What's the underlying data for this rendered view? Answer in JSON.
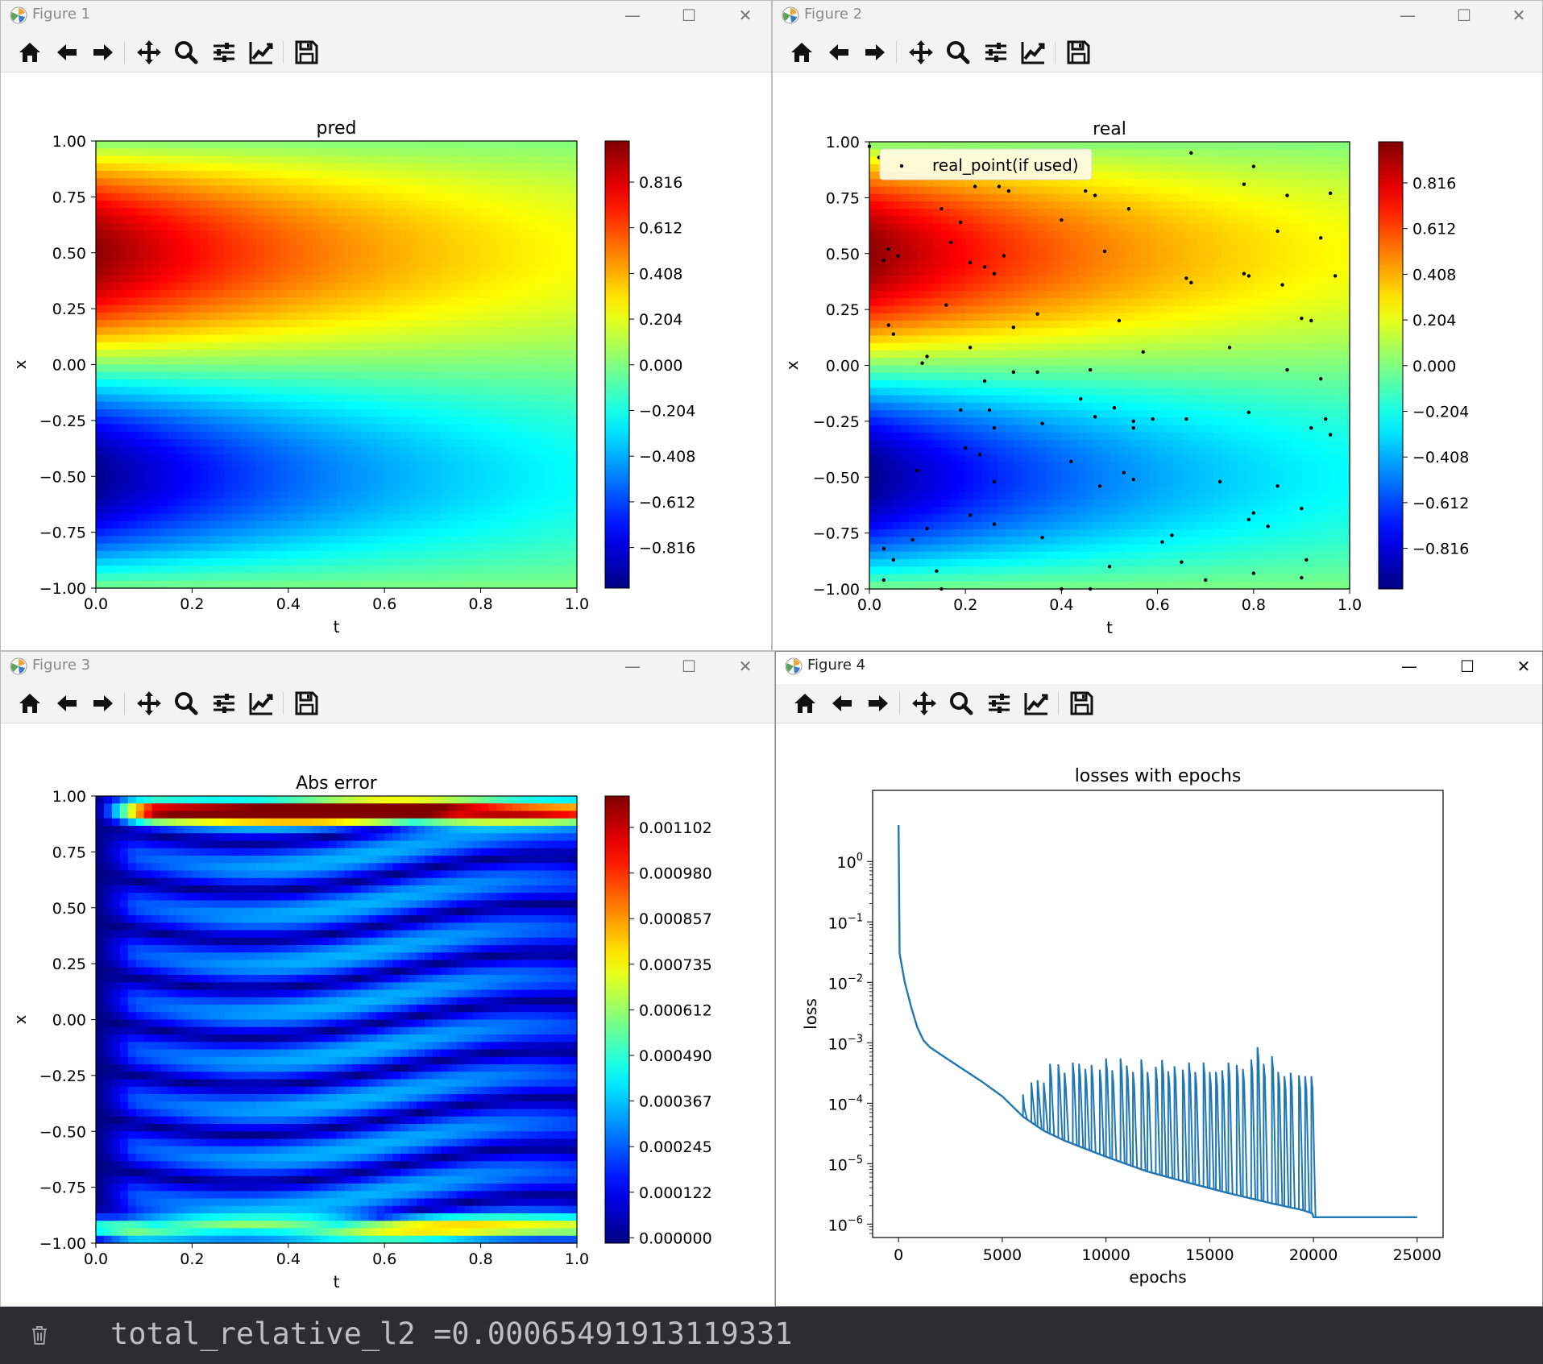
{
  "windows": [
    {
      "title": "Figure 1"
    },
    {
      "title": "Figure 2"
    },
    {
      "title": "Figure 3"
    },
    {
      "title": "Figure 4"
    }
  ],
  "window_controls": {
    "minimize": "—",
    "maximize": "☐",
    "close": "✕"
  },
  "toolbar_icons": [
    "home-icon",
    "back-arrow-icon",
    "forward-arrow-icon",
    "pan-icon",
    "zoom-icon",
    "configure-subplots-icon",
    "edit-axis-icon",
    "save-icon"
  ],
  "console": {
    "output": "total_relative_l2 =0.00065491913119331"
  },
  "chart_data": [
    {
      "type": "heatmap",
      "title": "pred",
      "xlabel": "t",
      "ylabel": "x",
      "xlim": [
        0.0,
        1.0
      ],
      "ylim": [
        -1.0,
        1.0
      ],
      "x_ticks": [
        "0.0",
        "0.2",
        "0.4",
        "0.6",
        "0.8",
        "1.0"
      ],
      "y_ticks": [
        "1.00",
        "0.75",
        "0.50",
        "0.25",
        "0.00",
        "−0.25",
        "−0.50",
        "−0.75",
        "−1.00"
      ],
      "colormap": "jet",
      "colorbar_ticks": [
        "0.816",
        "0.612",
        "0.408",
        "0.204",
        "0.000",
        "−0.204",
        "−0.408",
        "−0.612",
        "−0.816"
      ]
    },
    {
      "type": "heatmap",
      "title": "real",
      "xlabel": "t",
      "ylabel": "x",
      "xlim": [
        0.0,
        1.0
      ],
      "ylim": [
        -1.0,
        1.0
      ],
      "x_ticks": [
        "0.0",
        "0.2",
        "0.4",
        "0.6",
        "0.8",
        "1.0"
      ],
      "y_ticks": [
        "1.00",
        "0.75",
        "0.50",
        "0.25",
        "0.00",
        "−0.25",
        "−0.50",
        "−0.75",
        "−1.00"
      ],
      "colormap": "jet",
      "colorbar_ticks": [
        "0.816",
        "0.612",
        "0.408",
        "0.204",
        "0.000",
        "−0.204",
        "−0.408",
        "−0.612",
        "−0.816"
      ],
      "legend": "real_point(if used)",
      "legend_position": "upper-left",
      "scatter_points": [
        [
          0.04,
          0.52
        ],
        [
          0.06,
          0.49
        ],
        [
          0.03,
          0.47
        ],
        [
          0.04,
          0.18
        ],
        [
          0.05,
          0.14
        ],
        [
          0.11,
          0.01
        ],
        [
          0.12,
          0.04
        ],
        [
          0.02,
          0.93
        ],
        [
          0.17,
          0.55
        ],
        [
          0.15,
          0.7
        ],
        [
          0.19,
          0.64
        ],
        [
          0.16,
          0.27
        ],
        [
          0.21,
          0.46
        ],
        [
          0.22,
          0.8
        ],
        [
          0.24,
          0.44
        ],
        [
          0.26,
          0.41
        ],
        [
          0.27,
          0.8
        ],
        [
          0.29,
          0.78
        ],
        [
          0.28,
          0.49
        ],
        [
          0.21,
          0.08
        ],
        [
          0.24,
          -0.07
        ],
        [
          0.3,
          0.17
        ],
        [
          0.3,
          -0.03
        ],
        [
          0.35,
          0.23
        ],
        [
          0.35,
          -0.03
        ],
        [
          0.4,
          0.65
        ],
        [
          0.45,
          0.78
        ],
        [
          0.49,
          0.51
        ],
        [
          0.52,
          0.2
        ],
        [
          0.47,
          0.76
        ],
        [
          0.54,
          0.7
        ],
        [
          0.57,
          0.06
        ],
        [
          0.46,
          -0.02
        ],
        [
          0.44,
          -0.15
        ],
        [
          0.47,
          -0.23
        ],
        [
          0.51,
          -0.19
        ],
        [
          0.55,
          -0.25
        ],
        [
          0.55,
          -0.28
        ],
        [
          0.59,
          -0.24
        ],
        [
          0.66,
          -0.24
        ],
        [
          0.36,
          -0.26
        ],
        [
          0.19,
          -0.2
        ],
        [
          0.25,
          -0.2
        ],
        [
          0.26,
          -0.28
        ],
        [
          0.2,
          -0.37
        ],
        [
          0.23,
          -0.4
        ],
        [
          0.1,
          -0.47
        ],
        [
          0.26,
          -0.52
        ],
        [
          0.42,
          -0.43
        ],
        [
          0.48,
          -0.54
        ],
        [
          0.53,
          -0.48
        ],
        [
          0.55,
          -0.51
        ],
        [
          0.09,
          -0.78
        ],
        [
          0.12,
          -0.73
        ],
        [
          0.21,
          -0.67
        ],
        [
          0.26,
          -0.71
        ],
        [
          0.36,
          -0.77
        ],
        [
          0.03,
          -0.82
        ],
        [
          0.05,
          -0.87
        ],
        [
          0.14,
          -0.92
        ],
        [
          0.03,
          -0.96
        ],
        [
          0.15,
          -1.0
        ],
        [
          0.4,
          -1.0
        ],
        [
          0.46,
          -1.0
        ],
        [
          0.5,
          -0.9
        ],
        [
          0.61,
          -0.79
        ],
        [
          0.63,
          -0.76
        ],
        [
          0.65,
          -0.88
        ],
        [
          0.7,
          -0.96
        ],
        [
          0.73,
          -0.52
        ],
        [
          0.75,
          0.08
        ],
        [
          0.79,
          -0.21
        ],
        [
          0.79,
          -0.69
        ],
        [
          0.8,
          -0.66
        ],
        [
          0.8,
          -0.93
        ],
        [
          0.83,
          -0.72
        ],
        [
          0.85,
          -0.54
        ],
        [
          0.87,
          -0.02
        ],
        [
          0.9,
          -0.64
        ],
        [
          0.91,
          -0.87
        ],
        [
          0.9,
          -0.95
        ],
        [
          0.92,
          -0.28
        ],
        [
          0.95,
          -0.24
        ],
        [
          0.96,
          -0.31
        ],
        [
          0.94,
          -0.06
        ],
        [
          0.9,
          0.21
        ],
        [
          0.92,
          0.2
        ],
        [
          0.97,
          0.4
        ],
        [
          0.94,
          0.57
        ],
        [
          0.96,
          0.77
        ],
        [
          0.87,
          0.76
        ],
        [
          0.85,
          0.6
        ],
        [
          0.86,
          0.36
        ],
        [
          0.79,
          0.4
        ],
        [
          0.78,
          0.41
        ],
        [
          0.78,
          0.81
        ],
        [
          0.8,
          0.89
        ],
        [
          0.67,
          0.95
        ],
        [
          0.66,
          0.39
        ],
        [
          0.67,
          0.37
        ],
        [
          0.0,
          0.98
        ]
      ]
    },
    {
      "type": "heatmap",
      "title": "Abs error",
      "xlabel": "t",
      "ylabel": "x",
      "xlim": [
        0.0,
        1.0
      ],
      "ylim": [
        -1.0,
        1.0
      ],
      "x_ticks": [
        "0.0",
        "0.2",
        "0.4",
        "0.6",
        "0.8",
        "1.0"
      ],
      "y_ticks": [
        "1.00",
        "0.75",
        "0.50",
        "0.25",
        "0.00",
        "−0.25",
        "−0.50",
        "−0.75",
        "−1.00"
      ],
      "colormap": "jet",
      "colorbar_ticks": [
        "0.001102",
        "0.000980",
        "0.000857",
        "0.000735",
        "0.000612",
        "0.000490",
        "0.000367",
        "0.000245",
        "0.000122",
        "0.000000"
      ]
    },
    {
      "type": "line",
      "title": "losses with epochs",
      "xlabel": "epochs",
      "ylabel": "loss",
      "yscale": "log",
      "xlim": [
        -1250,
        26250
      ],
      "ylim": [
        6e-07,
        15
      ],
      "x_ticks": [
        "0",
        "5000",
        "10000",
        "15000",
        "20000",
        "25000"
      ],
      "y_ticks": [
        {
          "base": "10",
          "exp": "0"
        },
        {
          "base": "10",
          "exp": "−1"
        },
        {
          "base": "10",
          "exp": "−2"
        },
        {
          "base": "10",
          "exp": "−3"
        },
        {
          "base": "10",
          "exp": "−4"
        },
        {
          "base": "10",
          "exp": "−5"
        },
        {
          "base": "10",
          "exp": "−6"
        }
      ],
      "series_color": "#1f77b4",
      "base_curve": [
        [
          0,
          4.0
        ],
        [
          50,
          0.03
        ],
        [
          300,
          0.01
        ],
        [
          600,
          0.004
        ],
        [
          900,
          0.0018
        ],
        [
          1200,
          0.0011
        ],
        [
          1500,
          0.00085
        ],
        [
          2500,
          0.0005
        ],
        [
          4000,
          0.00023
        ],
        [
          5000,
          0.00013
        ],
        [
          6000,
          6e-05
        ],
        [
          7000,
          3.5e-05
        ],
        [
          8000,
          2.4e-05
        ],
        [
          10000,
          1.3e-05
        ],
        [
          12000,
          7.4e-06
        ],
        [
          14000,
          4.8e-06
        ],
        [
          16000,
          3.2e-06
        ],
        [
          18000,
          2.2e-06
        ],
        [
          19500,
          1.7e-06
        ],
        [
          19950,
          1.5e-06
        ],
        [
          20000,
          1.3e-06
        ],
        [
          25000,
          1.3e-06
        ]
      ],
      "spikes": [
        [
          6000,
          0.00014
        ],
        [
          6400,
          0.00022
        ],
        [
          6700,
          0.00024
        ],
        [
          7000,
          0.00022
        ],
        [
          7300,
          0.00045
        ],
        [
          7700,
          0.00044
        ],
        [
          8000,
          0.00032
        ],
        [
          8400,
          0.00047
        ],
        [
          8700,
          0.00045
        ],
        [
          9000,
          0.00037
        ],
        [
          9300,
          0.00043
        ],
        [
          9700,
          0.00036
        ],
        [
          10000,
          0.00055
        ],
        [
          10300,
          0.00035
        ],
        [
          10700,
          0.00055
        ],
        [
          11000,
          0.00042
        ],
        [
          11300,
          0.00033
        ],
        [
          11700,
          0.00053
        ],
        [
          12000,
          0.00033
        ],
        [
          12400,
          0.0004
        ],
        [
          12700,
          0.00052
        ],
        [
          13000,
          0.00034
        ],
        [
          13300,
          0.00041
        ],
        [
          13700,
          0.00036
        ],
        [
          14000,
          0.00047
        ],
        [
          14300,
          0.00033
        ],
        [
          14700,
          0.00047
        ],
        [
          15000,
          0.00033
        ],
        [
          15300,
          0.00033
        ],
        [
          15600,
          0.00035
        ],
        [
          15900,
          0.00047
        ],
        [
          16300,
          0.00043
        ],
        [
          16600,
          0.00037
        ],
        [
          17000,
          0.00053
        ],
        [
          17300,
          0.00085
        ],
        [
          17600,
          0.00045
        ],
        [
          18000,
          0.0006
        ],
        [
          18300,
          0.00033
        ],
        [
          18600,
          0.00028
        ],
        [
          18900,
          0.00032
        ],
        [
          19300,
          0.00029
        ],
        [
          19600,
          0.00028
        ],
        [
          19900,
          0.00028
        ]
      ]
    }
  ]
}
